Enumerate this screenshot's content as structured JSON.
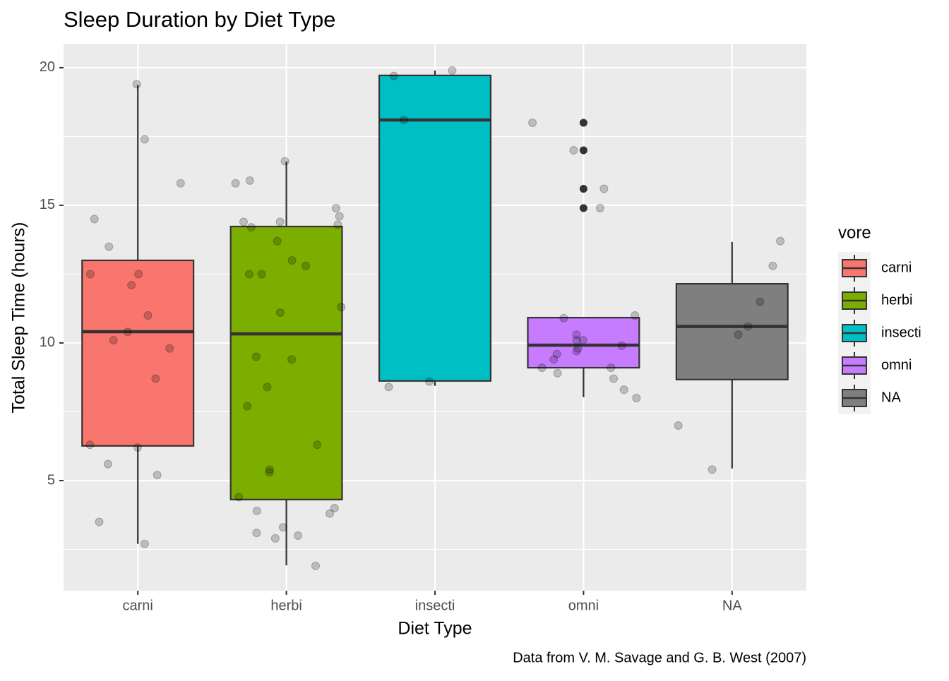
{
  "chart_data": {
    "type": "box",
    "title": "Sleep Duration by Diet Type",
    "x_label": "Diet Type",
    "y_label": "Total Sleep Time (hours)",
    "caption": "Data from V. M. Savage and G. B. West (2007)",
    "legend_title": "vore",
    "legend_position": "right",
    "ylim": [
      1.0,
      20.87
    ],
    "yticks": [
      5,
      10,
      15,
      20
    ],
    "yminor": [
      2.5,
      7.5,
      12.5,
      17.5
    ],
    "grid": true,
    "categories": [
      "carni",
      "herbi",
      "insecti",
      "omni",
      "NA"
    ],
    "boxes": [
      {
        "color": "#F8766D",
        "whisker_low": 2.7,
        "q1": 6.26,
        "median": 10.41,
        "q3": 13.0,
        "whisker_high": 19.38,
        "outliers": [],
        "points": [
          19.4,
          17.4,
          14.5,
          13.5,
          12.1,
          12.5,
          12.5,
          15.8,
          11.0,
          10.4,
          10.1,
          9.8,
          8.7,
          6.3,
          6.2,
          5.6,
          5.2,
          3.5,
          2.7
        ]
      },
      {
        "color": "#7CAE00",
        "whisker_low": 1.92,
        "q1": 4.31,
        "median": 10.33,
        "q3": 14.23,
        "whisker_high": 16.59,
        "outliers": [],
        "points": [
          16.6,
          15.9,
          15.8,
          14.9,
          14.6,
          14.4,
          14.4,
          14.3,
          14.2,
          13.7,
          13.0,
          12.8,
          12.5,
          12.5,
          11.3,
          11.1,
          9.5,
          9.4,
          8.4,
          7.7,
          6.3,
          5.4,
          5.3,
          4.4,
          4.0,
          3.9,
          3.8,
          3.3,
          3.1,
          3.0,
          2.9,
          1.9
        ]
      },
      {
        "color": "#00BFC4",
        "whisker_low": 8.44,
        "q1": 8.62,
        "median": 18.1,
        "q3": 19.72,
        "whisker_high": 19.9,
        "outliers": [],
        "points": [
          19.9,
          19.7,
          18.1,
          8.6,
          8.4
        ]
      },
      {
        "color": "#C77CFF",
        "whisker_low": 8.03,
        "q1": 9.1,
        "median": 9.92,
        "q3": 10.92,
        "whisker_high": 10.92,
        "outliers": [
          18.0,
          17.0,
          15.6,
          14.9
        ],
        "points": [
          18.0,
          17.0,
          15.6,
          14.9,
          11.0,
          10.9,
          10.3,
          10.1,
          10.1,
          9.9,
          9.8,
          9.7,
          9.6,
          9.4,
          9.1,
          9.1,
          8.9,
          8.7,
          8.3,
          8.0
        ]
      },
      {
        "color": "#7F7F7F",
        "whisker_low": 5.44,
        "q1": 8.67,
        "median": 10.6,
        "q3": 12.15,
        "whisker_high": 13.67,
        "outliers": [],
        "points": [
          13.7,
          12.8,
          11.5,
          10.6,
          10.3,
          7.0,
          5.4
        ]
      }
    ]
  }
}
